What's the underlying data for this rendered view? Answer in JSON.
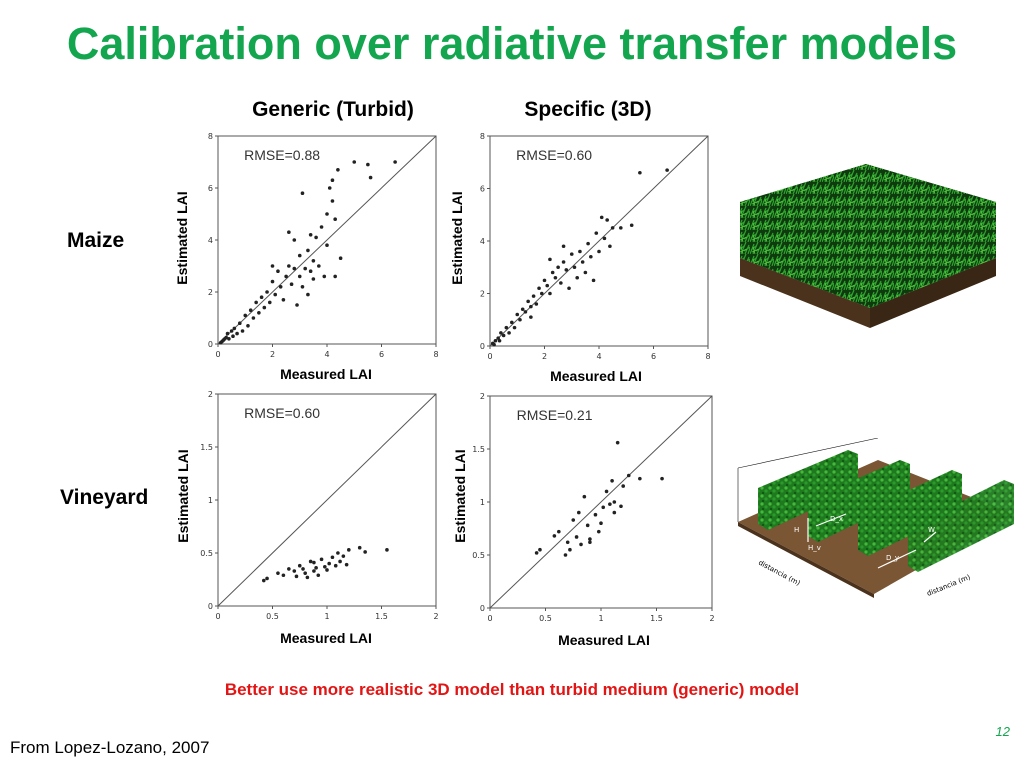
{
  "slide": {
    "title": "Calibration over radiative transfer models",
    "col_generic": "Generic (Turbid)",
    "col_specific": "Specific (3D)",
    "row_maize": "Maize",
    "row_vineyard": "Vineyard",
    "ylabel": "Estimated LAI",
    "xlabel": "Measured LAI",
    "conclusion": "Better use more realistic 3D model than turbid medium (generic) model",
    "source": "From Lopez-Lozano, 2007",
    "page_number": "12",
    "colors": {
      "title": "#13a64f",
      "conclusion": "#e31414",
      "points": "#222222"
    },
    "scene_maize_icon": "maize-canopy-3d-scene",
    "scene_vineyard_icon": "vineyard-rows-3d-scene",
    "vineyard_axis_labels": [
      "distancia (m)",
      "distancia (m)"
    ],
    "vineyard_dim_labels": [
      "D_x",
      "W",
      "H",
      "H_v",
      "D_y"
    ]
  },
  "chart_data": [
    {
      "type": "scatter",
      "panel": "maize-generic",
      "annotation": "RMSE=0.88",
      "xlim": [
        0,
        8
      ],
      "ylim": [
        0,
        8
      ],
      "xticks": [
        "0",
        "2",
        "4",
        "6",
        "8"
      ],
      "yticks": [
        "0",
        "2",
        "4",
        "6",
        "8"
      ],
      "identity_line": true,
      "points": [
        [
          0.1,
          0.05
        ],
        [
          0.15,
          0.1
        ],
        [
          0.2,
          0.15
        ],
        [
          0.25,
          0.2
        ],
        [
          0.3,
          0.25
        ],
        [
          0.35,
          0.4
        ],
        [
          0.4,
          0.2
        ],
        [
          0.5,
          0.5
        ],
        [
          0.55,
          0.3
        ],
        [
          0.6,
          0.6
        ],
        [
          0.7,
          0.4
        ],
        [
          0.8,
          0.8
        ],
        [
          0.9,
          0.5
        ],
        [
          1.0,
          1.1
        ],
        [
          1.1,
          0.7
        ],
        [
          1.2,
          1.3
        ],
        [
          1.3,
          1.0
        ],
        [
          1.4,
          1.6
        ],
        [
          1.5,
          1.2
        ],
        [
          1.6,
          1.8
        ],
        [
          1.7,
          1.4
        ],
        [
          1.8,
          2.0
        ],
        [
          1.9,
          1.6
        ],
        [
          2.0,
          2.4
        ],
        [
          2.1,
          1.9
        ],
        [
          2.2,
          2.8
        ],
        [
          2.3,
          2.2
        ],
        [
          2.4,
          1.7
        ],
        [
          2.5,
          2.6
        ],
        [
          2.6,
          3.0
        ],
        [
          2.7,
          2.3
        ],
        [
          2.8,
          2.9
        ],
        [
          2.9,
          1.5
        ],
        [
          3.0,
          3.4
        ],
        [
          3.0,
          2.6
        ],
        [
          3.1,
          2.2
        ],
        [
          3.2,
          2.9
        ],
        [
          3.3,
          3.6
        ],
        [
          3.3,
          1.9
        ],
        [
          3.4,
          2.8
        ],
        [
          3.5,
          3.2
        ],
        [
          3.5,
          2.5
        ],
        [
          3.6,
          4.1
        ],
        [
          3.7,
          3.0
        ],
        [
          3.8,
          4.5
        ],
        [
          3.9,
          2.6
        ],
        [
          4.0,
          3.8
        ],
        [
          4.0,
          5.0
        ],
        [
          4.1,
          6.0
        ],
        [
          4.2,
          5.5
        ],
        [
          4.2,
          6.3
        ],
        [
          4.3,
          4.8
        ],
        [
          4.3,
          2.6
        ],
        [
          4.4,
          6.7
        ],
        [
          4.5,
          3.3
        ],
        [
          3.1,
          5.8
        ],
        [
          2.8,
          4.0
        ],
        [
          3.4,
          4.2
        ],
        [
          5.0,
          7.0
        ],
        [
          5.5,
          6.9
        ],
        [
          6.5,
          7.0
        ],
        [
          5.6,
          6.4
        ],
        [
          2.6,
          4.3
        ],
        [
          2.0,
          3.0
        ]
      ]
    },
    {
      "type": "scatter",
      "panel": "maize-specific",
      "annotation": "RMSE=0.60",
      "xlim": [
        0,
        8
      ],
      "ylim": [
        0,
        8
      ],
      "xticks": [
        "0",
        "2",
        "4",
        "6",
        "8"
      ],
      "yticks": [
        "0",
        "2",
        "4",
        "6",
        "8"
      ],
      "identity_line": true,
      "points": [
        [
          0.1,
          0.1
        ],
        [
          0.15,
          0.05
        ],
        [
          0.2,
          0.2
        ],
        [
          0.3,
          0.3
        ],
        [
          0.35,
          0.2
        ],
        [
          0.4,
          0.5
        ],
        [
          0.5,
          0.4
        ],
        [
          0.6,
          0.7
        ],
        [
          0.7,
          0.5
        ],
        [
          0.8,
          0.9
        ],
        [
          0.9,
          0.7
        ],
        [
          1.0,
          1.2
        ],
        [
          1.1,
          1.0
        ],
        [
          1.2,
          1.4
        ],
        [
          1.3,
          1.3
        ],
        [
          1.4,
          1.7
        ],
        [
          1.5,
          1.5
        ],
        [
          1.6,
          1.9
        ],
        [
          1.7,
          1.6
        ],
        [
          1.8,
          2.2
        ],
        [
          1.9,
          2.0
        ],
        [
          2.0,
          2.5
        ],
        [
          2.1,
          2.3
        ],
        [
          2.2,
          2.0
        ],
        [
          2.3,
          2.8
        ],
        [
          2.4,
          2.6
        ],
        [
          2.5,
          3.0
        ],
        [
          2.6,
          2.4
        ],
        [
          2.7,
          3.2
        ],
        [
          2.8,
          2.9
        ],
        [
          2.9,
          2.2
        ],
        [
          3.0,
          3.5
        ],
        [
          3.1,
          3.0
        ],
        [
          3.2,
          2.6
        ],
        [
          3.3,
          3.6
        ],
        [
          3.4,
          3.2
        ],
        [
          3.5,
          2.8
        ],
        [
          3.6,
          3.9
        ],
        [
          3.7,
          3.4
        ],
        [
          3.8,
          2.5
        ],
        [
          3.9,
          4.3
        ],
        [
          4.0,
          3.6
        ],
        [
          4.1,
          4.9
        ],
        [
          4.2,
          4.1
        ],
        [
          4.3,
          4.8
        ],
        [
          4.4,
          3.8
        ],
        [
          4.5,
          4.5
        ],
        [
          5.5,
          6.6
        ],
        [
          6.5,
          6.7
        ],
        [
          5.2,
          4.6
        ],
        [
          4.8,
          4.5
        ],
        [
          2.7,
          3.8
        ],
        [
          2.2,
          3.3
        ],
        [
          1.5,
          1.1
        ]
      ]
    },
    {
      "type": "scatter",
      "panel": "vineyard-generic",
      "annotation": "RMSE=0.60",
      "xlim": [
        0,
        2
      ],
      "ylim": [
        0,
        2
      ],
      "xticks": [
        "0",
        "0.5",
        "1",
        "1.5",
        "2"
      ],
      "yticks": [
        "0",
        "0.5",
        "1",
        "1.5",
        "2"
      ],
      "identity_line": true,
      "points": [
        [
          0.42,
          0.24
        ],
        [
          0.45,
          0.26
        ],
        [
          0.55,
          0.31
        ],
        [
          0.6,
          0.29
        ],
        [
          0.7,
          0.33
        ],
        [
          0.72,
          0.28
        ],
        [
          0.75,
          0.38
        ],
        [
          0.78,
          0.35
        ],
        [
          0.8,
          0.31
        ],
        [
          0.82,
          0.27
        ],
        [
          0.85,
          0.42
        ],
        [
          0.88,
          0.33
        ],
        [
          0.9,
          0.36
        ],
        [
          0.92,
          0.29
        ],
        [
          0.95,
          0.44
        ],
        [
          0.98,
          0.37
        ],
        [
          1.0,
          0.34
        ],
        [
          1.02,
          0.4
        ],
        [
          1.05,
          0.46
        ],
        [
          1.08,
          0.38
        ],
        [
          1.1,
          0.5
        ],
        [
          1.12,
          0.42
        ],
        [
          1.15,
          0.47
        ],
        [
          1.2,
          0.53
        ],
        [
          1.3,
          0.55
        ],
        [
          1.35,
          0.51
        ],
        [
          1.55,
          0.53
        ],
        [
          0.65,
          0.35
        ],
        [
          0.88,
          0.41
        ],
        [
          1.18,
          0.39
        ]
      ]
    },
    {
      "type": "scatter",
      "panel": "vineyard-specific",
      "annotation": "RMSE=0.21",
      "xlim": [
        0,
        2
      ],
      "ylim": [
        0,
        2
      ],
      "xticks": [
        "0",
        "0.5",
        "1",
        "1.5",
        "2"
      ],
      "yticks": [
        "0",
        "0.5",
        "1",
        "1.5",
        "2"
      ],
      "identity_line": true,
      "points": [
        [
          0.42,
          0.52
        ],
        [
          0.45,
          0.55
        ],
        [
          0.58,
          0.68
        ],
        [
          0.62,
          0.72
        ],
        [
          0.7,
          0.62
        ],
        [
          0.72,
          0.55
        ],
        [
          0.75,
          0.83
        ],
        [
          0.78,
          0.67
        ],
        [
          0.8,
          0.9
        ],
        [
          0.82,
          0.6
        ],
        [
          0.85,
          1.05
        ],
        [
          0.88,
          0.78
        ],
        [
          0.9,
          0.65
        ],
        [
          0.95,
          0.88
        ],
        [
          0.98,
          0.72
        ],
        [
          1.0,
          0.8
        ],
        [
          1.02,
          0.95
        ],
        [
          1.05,
          1.1
        ],
        [
          1.08,
          0.98
        ],
        [
          1.1,
          1.2
        ],
        [
          1.12,
          0.9
        ],
        [
          1.15,
          1.56
        ],
        [
          1.18,
          0.96
        ],
        [
          1.2,
          1.15
        ],
        [
          1.25,
          1.25
        ],
        [
          1.35,
          1.22
        ],
        [
          1.55,
          1.22
        ],
        [
          0.68,
          0.5
        ],
        [
          0.9,
          0.62
        ],
        [
          1.12,
          1.0
        ]
      ]
    }
  ]
}
